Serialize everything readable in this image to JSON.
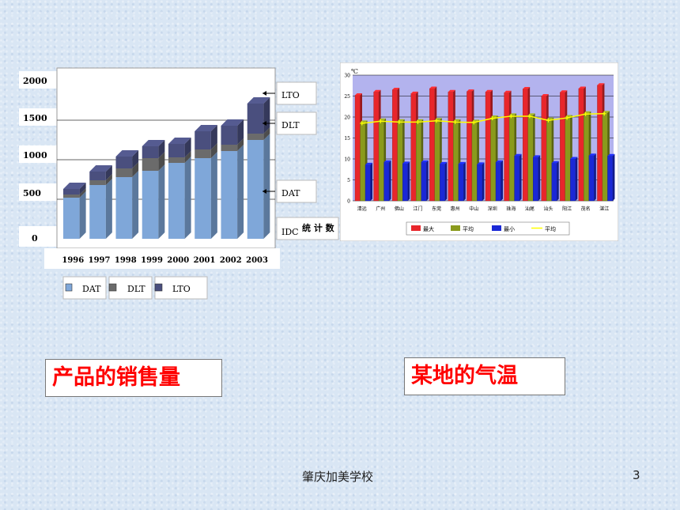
{
  "slide": {
    "caption_left": "产品的销售量",
    "caption_right": "某地的气温",
    "footer_school": "肇庆加美学校",
    "page_number": "3"
  },
  "chart_data": [
    {
      "type": "bar",
      "stacked": true,
      "style": "3d",
      "categories": [
        "1996",
        "1997",
        "1998",
        "1999",
        "2000",
        "2001",
        "2002",
        "2003"
      ],
      "y_ticks": [
        "2000",
        "1500",
        "1000",
        "500",
        "0"
      ],
      "ylim": [
        0,
        2000
      ],
      "series": [
        {
          "name": "DAT",
          "values": [
            520,
            680,
            780,
            860,
            960,
            1020,
            1110,
            1250
          ],
          "color": "#7fa7d9"
        },
        {
          "name": "DLT",
          "values": [
            40,
            60,
            110,
            160,
            70,
            110,
            80,
            80
          ],
          "color": "#6b6b6b"
        },
        {
          "name": "LTO",
          "values": [
            70,
            110,
            150,
            150,
            170,
            230,
            240,
            380
          ],
          "color": "#4a4f7e"
        }
      ],
      "side_labels": [
        "LTO",
        "DLT",
        "DAT",
        "IDC"
      ],
      "side_note": "统 计 数",
      "legend": [
        "DAT",
        "DLT",
        "LTO"
      ],
      "legend_position": "bottom"
    },
    {
      "type": "bar",
      "unit": "℃",
      "categories": [
        "清远",
        "广州",
        "佛山",
        "江门",
        "东莞",
        "惠州",
        "中山",
        "深圳",
        "珠海",
        "汕尾",
        "汕头",
        "阳江",
        "茂名",
        "湛江"
      ],
      "ylim": [
        0,
        30
      ],
      "y_ticks": [
        0,
        5,
        10,
        15,
        20,
        25,
        30
      ],
      "grid": true,
      "legend_position": "bottom",
      "series": [
        {
          "name": "最大",
          "type": "bar",
          "color": "#e8262b",
          "values": [
            25.2,
            26.0,
            26.5,
            25.6,
            26.8,
            26.0,
            26.1,
            26.0,
            25.8,
            26.7,
            25.0,
            25.9,
            26.8,
            27.6
          ]
        },
        {
          "name": "平均",
          "type": "bar",
          "color": "#8a9a1c",
          "values": [
            18.7,
            19.2,
            19.0,
            19.0,
            19.3,
            19.0,
            18.9,
            19.9,
            20.4,
            20.4,
            19.4,
            20.0,
            20.9,
            21.0
          ]
        },
        {
          "name": "最小",
          "type": "bar",
          "color": "#1a28d6",
          "values": [
            8.6,
            9.2,
            8.9,
            9.2,
            8.8,
            8.8,
            8.7,
            9.2,
            10.7,
            10.4,
            9.0,
            10.0,
            10.8,
            10.7
          ]
        },
        {
          "name": "平均",
          "type": "line",
          "color": "#ffff00",
          "values": [
            18.5,
            19.0,
            18.8,
            18.8,
            19.1,
            18.8,
            18.7,
            19.7,
            20.2,
            20.2,
            19.2,
            19.8,
            20.7,
            20.8
          ]
        }
      ]
    }
  ]
}
